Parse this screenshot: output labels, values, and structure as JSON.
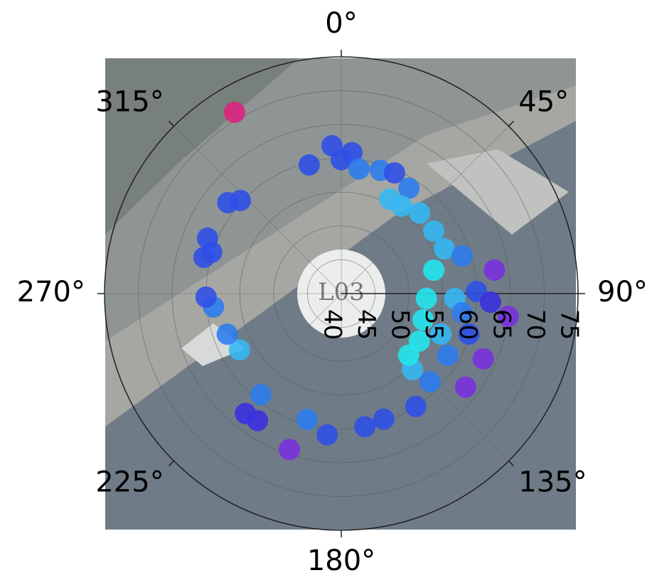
{
  "chart_data": {
    "type": "polar-scatter",
    "background_label": "L03",
    "r": [
      71.1,
      61.9,
      59.6,
      60.9,
      59.8,
      58.6,
      59.1,
      59.5,
      58.5,
      55.7,
      55.7,
      56.6,
      56.5,
      56.6,
      58.7,
      62.9,
      54.1,
      52.6,
      56.8,
      60.0,
      62.1,
      64.9,
      53.5,
      58.2,
      59.8,
      63.1,
      63.0,
      58.5,
      55.4,
      60.0,
      59.6,
      60.0,
      61.0,
      59.3,
      64.3,
      62.5,
      62.7,
      59.1,
      57.2,
      57.9,
      59.0,
      60.0,
      60.1,
      61.0,
      61.4,
      61.5,
      60.3,
      52.7,
      55.9,
      53.5,
      58.1
    ],
    "theta": [
      329.5,
      356.4,
      346,
      4.3,
      0,
      8.1,
      17.6,
      23.8,
      32.7,
      27.1,
      34.6,
      44.2,
      55.9,
      66.5,
      72.7,
      81.3,
      75.8,
      93.3,
      92.5,
      89.1,
      93.3,
      97.8,
      121.3,
      120.1,
      107.6,
      114.7,
      127,
      134.8,
      136.9,
      146.6,
      161.3,
      170,
      185.7,
      195.2,
      198.4,
      213.4,
      218.6,
      218.5,
      241.1,
      250.4,
      264,
      268.5,
      287.7,
      284.8,
      292.5,
      308.7,
      312.7,
      107.8,
      112.2,
      132.5,
      99
    ],
    "marker_colors": [
      "#e0207f",
      "#2d4fe8",
      "#2d4fe8",
      "#2d4fe8",
      "#2d4fe8",
      "#2b7cf0",
      "#2b7cf0",
      "#2d4fe8",
      "#2b7cf0",
      "#33b8f5",
      "#33b8f5",
      "#33b8f5",
      "#33b8f5",
      "#33b8f5",
      "#2b7cf0",
      "#7a2fe0",
      "#22e8f0",
      "#22e8f0",
      "#33b8f5",
      "#2d4fe8",
      "#3a2fe0",
      "#7a2fe0",
      "#22e8f0",
      "#2b7cf0",
      "#2d4fe8",
      "#7a2fe0",
      "#7a2fe0",
      "#2b7cf0",
      "#33b8f5",
      "#2d4fe8",
      "#2d4fe8",
      "#2d4fe8",
      "#2d4fe8",
      "#2b7cf0",
      "#7a2fe0",
      "#3a2fe0",
      "#3a2fe0",
      "#2b7cf0",
      "#33b8f5",
      "#2b7cf0",
      "#2b7cf0",
      "#2d4fe8",
      "#2d4fe8",
      "#2d4fe8",
      "#2d4fe8",
      "#2d4fe8",
      "#2d4fe8",
      "#22e8f0",
      "#33b8f5",
      "#22e8f0",
      "#2b7cf0"
    ],
    "rlim": [
      40,
      75
    ],
    "rticks": [
      40,
      45,
      50,
      55,
      60,
      65,
      70,
      75
    ],
    "thetaticks": [
      {
        "value": 0,
        "label": "0°"
      },
      {
        "value": 45,
        "label": "45°"
      },
      {
        "value": 90,
        "label": "90°"
      },
      {
        "value": 135,
        "label": "135°"
      },
      {
        "value": 180,
        "label": "180°"
      },
      {
        "value": 225,
        "label": "225°"
      },
      {
        "value": 270,
        "label": "270°"
      },
      {
        "value": 315,
        "label": "315°"
      }
    ],
    "direction": "clockwise",
    "rotation": 90,
    "grid": true
  }
}
